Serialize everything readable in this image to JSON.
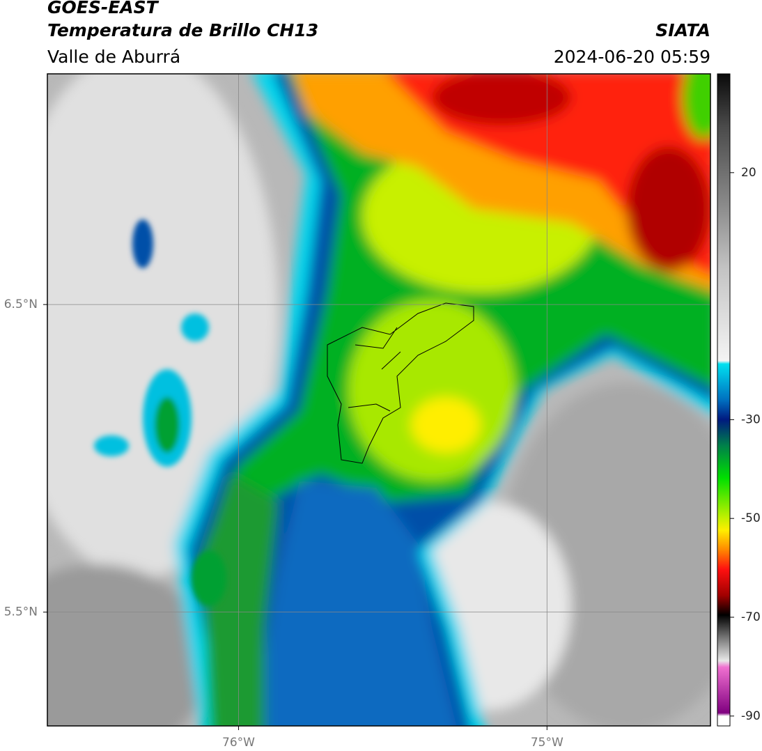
{
  "header": {
    "title": "GOES-EAST",
    "subtitle": "Temperatura de Brillo CH13",
    "source": "SIATA",
    "region": "Valle de Aburrá",
    "timestamp": "2024-06-20 05:59"
  },
  "map": {
    "lon_range": [
      -76.62,
      -74.47
    ],
    "lat_range": [
      5.13,
      7.25
    ],
    "lat_ticks": [
      {
        "value": 6.5,
        "label": "6.5°N"
      },
      {
        "value": 5.5,
        "label": "5.5°N"
      }
    ],
    "lon_ticks": [
      {
        "value": -76,
        "label": "76°W"
      },
      {
        "value": -75,
        "label": "75°W"
      }
    ]
  },
  "colorbar": {
    "range": [
      -92,
      40
    ],
    "ticks": [
      20,
      -30,
      -50,
      -70,
      -90
    ]
  }
}
